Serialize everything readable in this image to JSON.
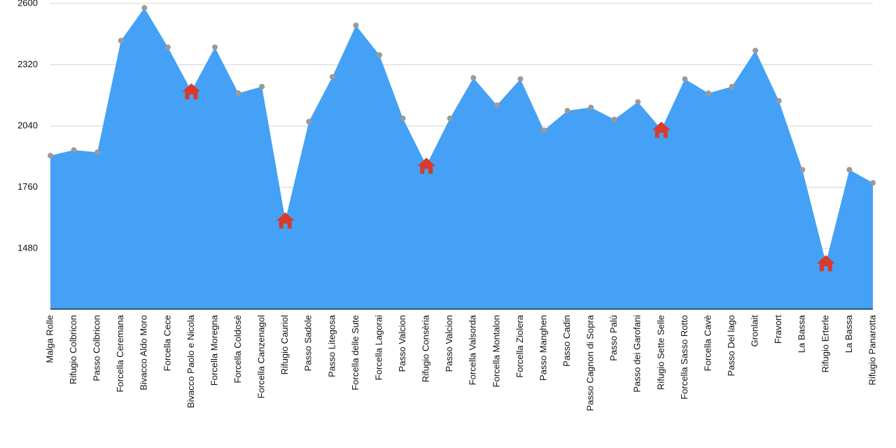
{
  "chart_data": {
    "type": "area",
    "categories": [
      "Malga Rolle",
      "Rifugio Colbricon",
      "Passo Colbricon",
      "Forcella Ceremana",
      "Bivacco Aldo Moro",
      "Forcella Cece",
      "Bivacco Paolo e Nicola",
      "Forcella Moregna",
      "Forcella Coldosè",
      "Forcella Canzenagol",
      "Rifugio Cauriol",
      "Passo Sadole",
      "Passo Litegosa",
      "Forcella delle Sute",
      "Forcella Lagorai",
      "Passo Valcion",
      "Rifugio Consèria",
      "Passo Valcion",
      "Forcella Valsorda",
      "Forcella Montalon",
      "Forcella Ziolera",
      "Passo Manghen",
      "Passo Cadin",
      "Passo Cagnon di Sopra",
      "Passo Palù",
      "Passo dei Garofani",
      "Rifugio Sette Selle",
      "Forcella Sasso Rotto",
      "Forcella Cavè",
      "Passo Del lago",
      "Gronlait",
      "Fravort",
      "La Bassa",
      "Rifugio Erterle",
      "La Bassa",
      "Rifugio Panarotta"
    ],
    "values": [
      1905,
      1930,
      1920,
      2430,
      2580,
      2400,
      2200,
      2400,
      2190,
      2220,
      1610,
      2060,
      2265,
      2500,
      2365,
      2075,
      1860,
      2075,
      2260,
      2135,
      2255,
      2020,
      2110,
      2125,
      2070,
      2150,
      2025,
      2255,
      2190,
      2220,
      2385,
      2155,
      1840,
      1415,
      1840,
      1780
    ],
    "markers": [
      "dot",
      "dot",
      "dot",
      "dot",
      "dot",
      "dot",
      "house",
      "dot",
      "dot",
      "dot",
      "house",
      "dot",
      "dot",
      "dot",
      "dot",
      "dot",
      "house",
      "dot",
      "dot",
      "dot",
      "dot",
      "dot",
      "dot",
      "dot",
      "dot",
      "dot",
      "house",
      "dot",
      "dot",
      "dot",
      "dot",
      "dot",
      "dot",
      "house",
      "dot",
      "dot"
    ],
    "color": "#44a1f5",
    "marker_color": "#9a9a9a",
    "house_color": "#d83a2c",
    "ylim": [
      1200,
      2600
    ],
    "yticks": [
      1480,
      1760,
      2040,
      2320,
      2600
    ],
    "grid": true
  }
}
